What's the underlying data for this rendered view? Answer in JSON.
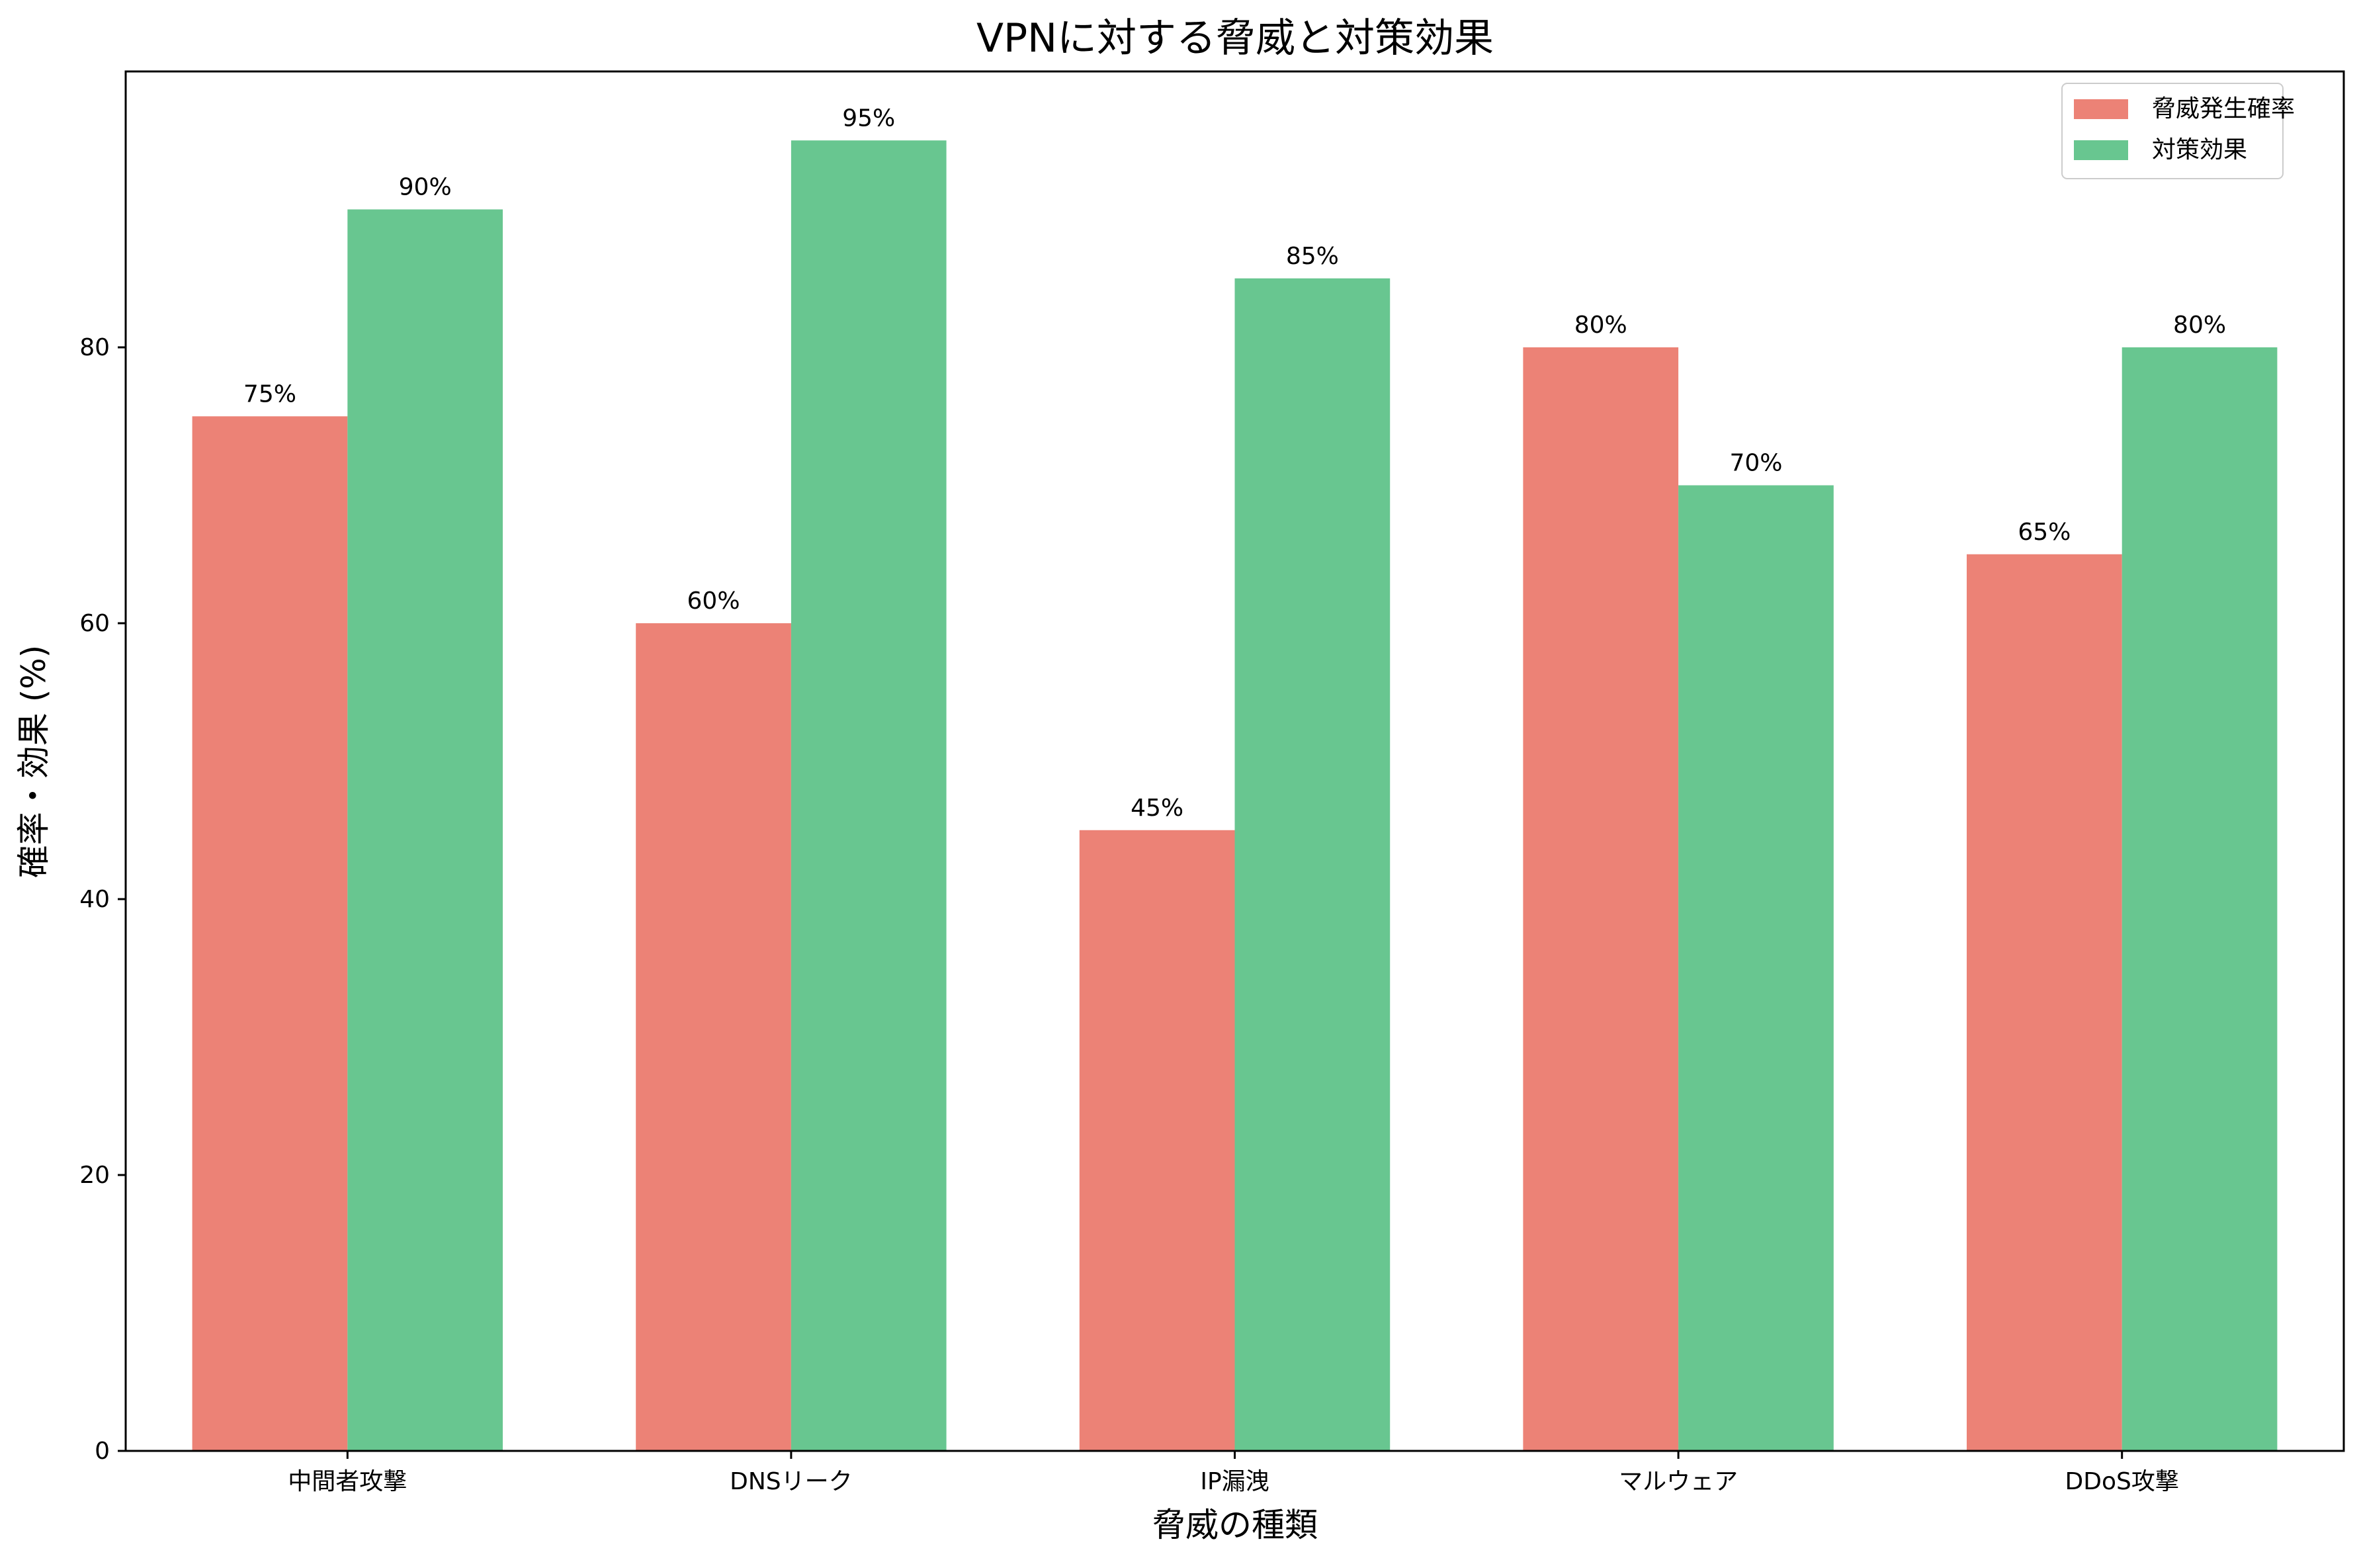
{
  "chart_data": {
    "type": "bar",
    "title": "VPNに対する脅威と対策効果",
    "xlabel": "脅威の種類",
    "ylabel": "確率・効果 (%)",
    "categories": [
      "中間者攻撃",
      "DNSリーク",
      "IP漏洩",
      "マルウェア",
      "DDoS攻撃"
    ],
    "series": [
      {
        "name": "脅威発生確率",
        "color": "#ec8276",
        "values": [
          75,
          60,
          45,
          80,
          65
        ]
      },
      {
        "name": "対策効果",
        "color": "#68c690",
        "values": [
          90,
          95,
          85,
          70,
          80
        ]
      }
    ],
    "value_suffix": "%",
    "ylim": [
      0,
      100
    ],
    "yticks": [
      0,
      20,
      40,
      60,
      80
    ],
    "grid": false,
    "legend_position": "top-right"
  }
}
